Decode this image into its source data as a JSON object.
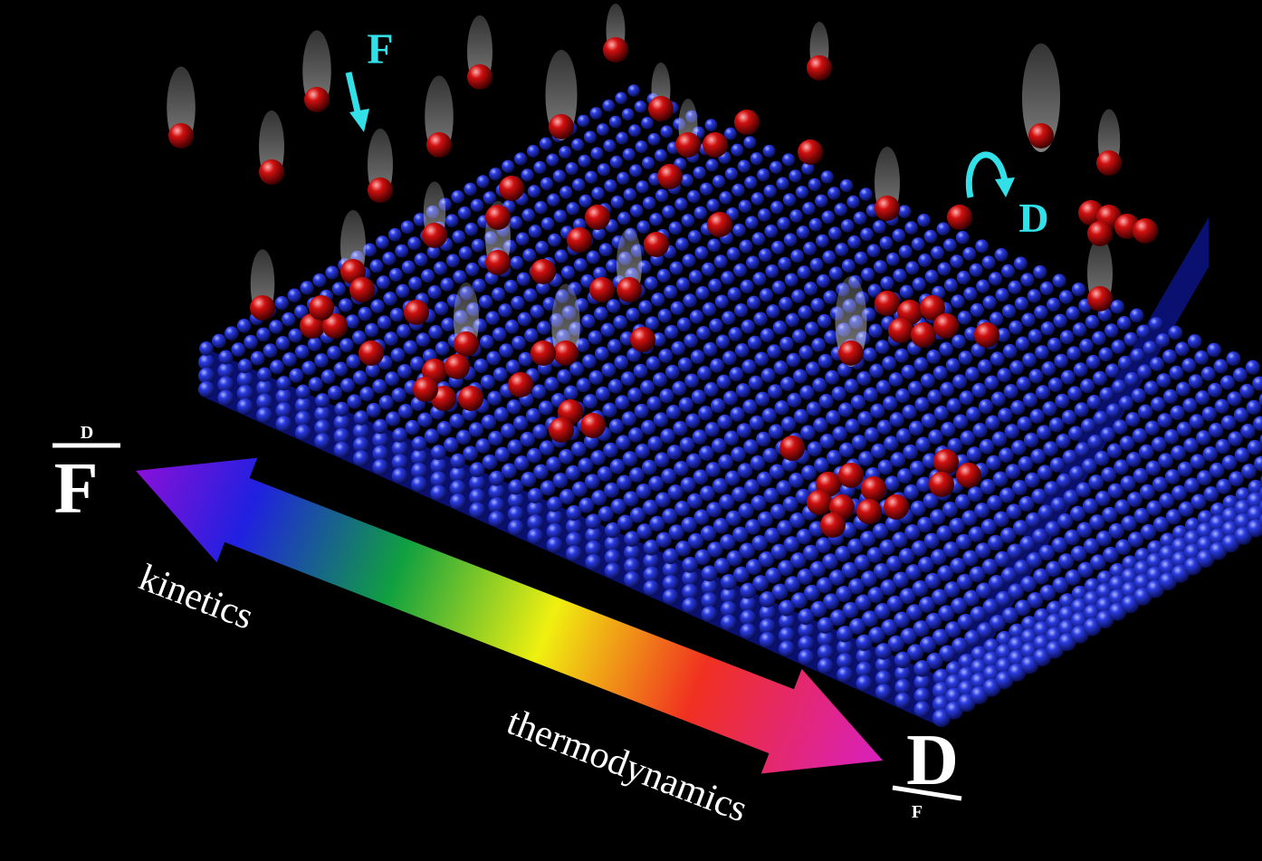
{
  "flux_label": "F",
  "diffusion_label": "D",
  "left_ratio": {
    "numerator": "D",
    "denominator": "F"
  },
  "right_ratio": {
    "numerator": "D",
    "denominator": "F"
  },
  "left_label": "kinetics",
  "right_label": "thermodynamics"
}
